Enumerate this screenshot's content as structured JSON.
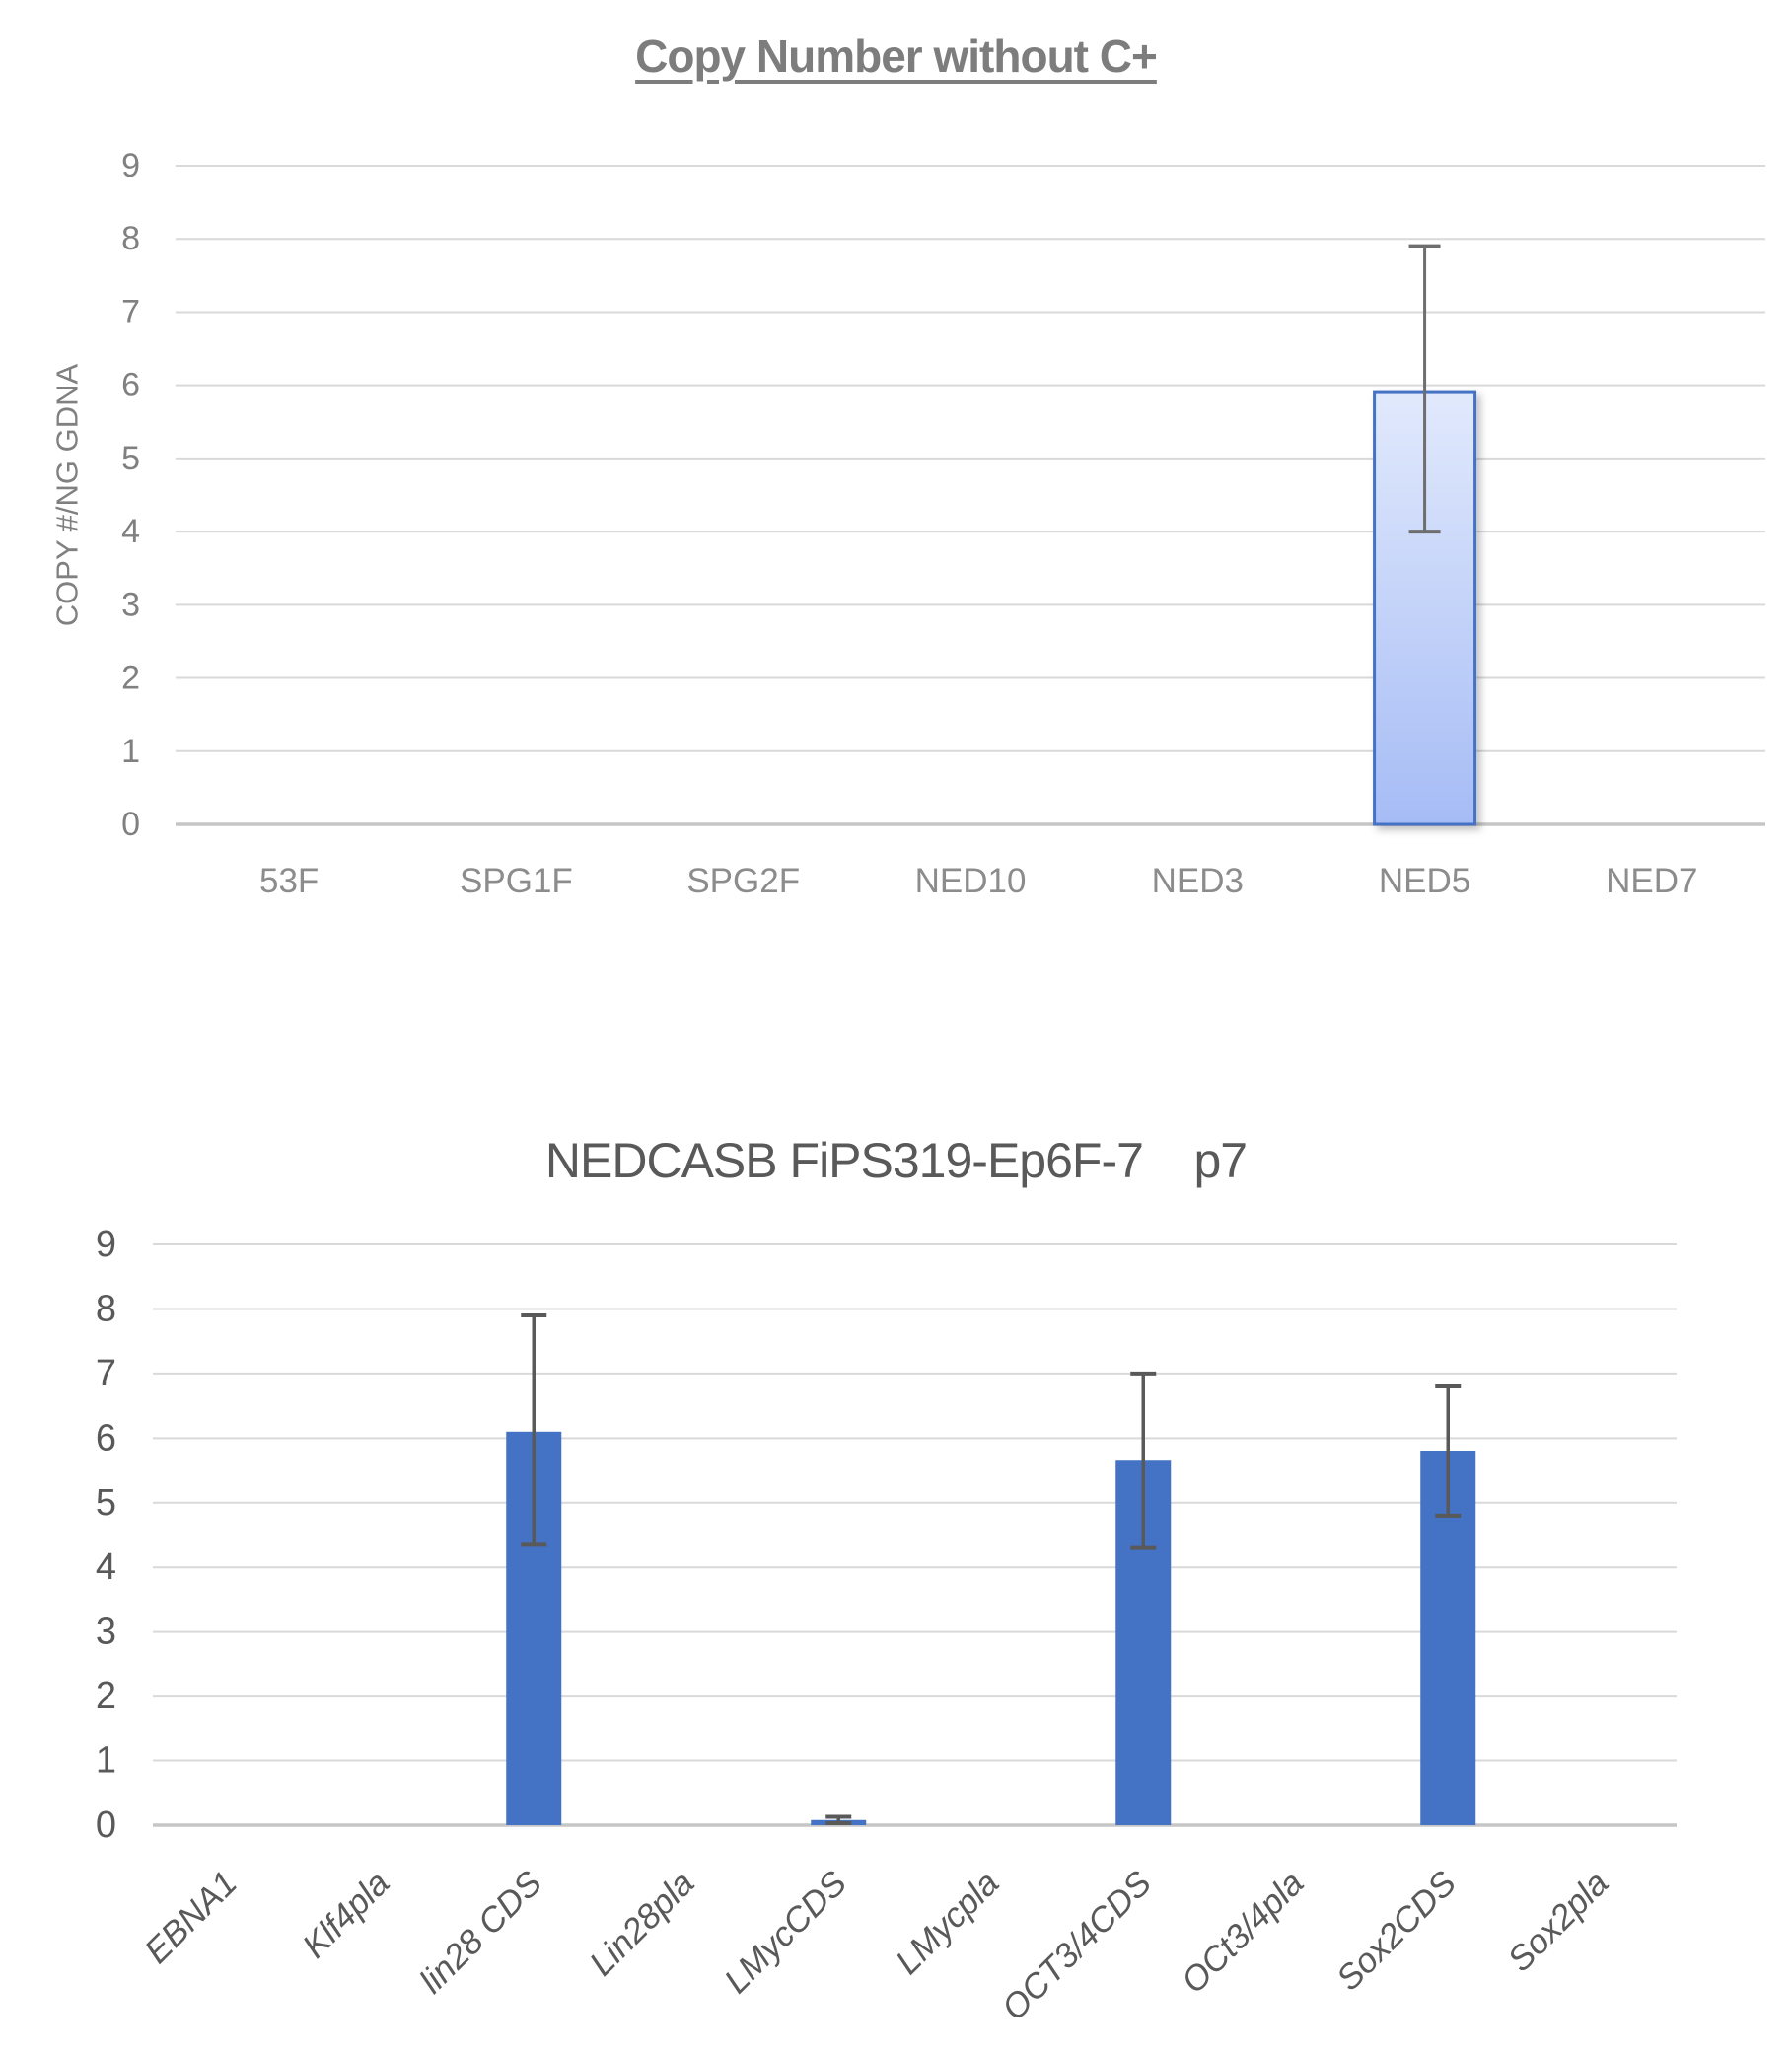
{
  "page": {
    "background": "#ffffff"
  },
  "chart_data": [
    {
      "type": "bar",
      "title": "Copy Number without C+",
      "title_style": {
        "bold": true,
        "underline": true,
        "color": "#7d7d7d"
      },
      "xlabel": "",
      "ylabel": "COPY #/NG GDNA",
      "ylim": [
        0,
        9
      ],
      "yticks": [
        0,
        1,
        2,
        3,
        4,
        5,
        6,
        7,
        8,
        9
      ],
      "grid": true,
      "legend": false,
      "categories": [
        "53F",
        "SPG1F",
        "SPG2F",
        "NED10",
        "NED3",
        "NED5",
        "NED7"
      ],
      "values": [
        0,
        0,
        0,
        0,
        0,
        5.9,
        0
      ],
      "error_bars": [
        null,
        null,
        null,
        null,
        null,
        {
          "low": 4.0,
          "high": 7.9
        },
        null
      ],
      "bar_style": {
        "fill_gradient_top": "#e1e9fc",
        "fill_gradient_bottom": "#a6bcf5",
        "border": "#4472c4"
      },
      "colors": {
        "gridline": "#d9d9d9",
        "axis_line": "#c6c6c6",
        "tick_text": "#808080",
        "category_text": "#8c8c8c",
        "axis_title_text": "#808080",
        "error_bar": "#6e6e6e"
      }
    },
    {
      "type": "bar",
      "title": "NEDCASB FiPS319-Ep6F-7    p7",
      "title_style": {
        "bold": false,
        "underline": false,
        "color": "#595959"
      },
      "xlabel": "",
      "ylabel": "",
      "ylim": [
        0,
        9
      ],
      "yticks": [
        0,
        1,
        2,
        3,
        4,
        5,
        6,
        7,
        8,
        9
      ],
      "grid": true,
      "legend": false,
      "categories": [
        "EBNA1",
        "Klf4pla",
        "lin28 CDS",
        "Lin28pla",
        "LMycCDS",
        "LMycpla",
        "OCT3/4CDS",
        "OCt3/4pla",
        "Sox2CDS",
        "Sox2pla"
      ],
      "values": [
        0,
        0,
        6.1,
        0,
        0.08,
        0,
        5.65,
        0,
        5.8,
        0
      ],
      "error_bars": [
        null,
        null,
        {
          "low": 4.35,
          "high": 7.9
        },
        null,
        {
          "low": 0.03,
          "high": 0.13
        },
        null,
        {
          "low": 4.3,
          "high": 7.0
        },
        null,
        {
          "low": 4.8,
          "high": 6.8
        },
        null
      ],
      "bar_style": {
        "fill": "#4472c4"
      },
      "category_label_style": {
        "italic": true,
        "rotation_deg": 45
      },
      "colors": {
        "gridline": "#d9d9d9",
        "axis_line": "#c6c6c6",
        "tick_text": "#595959",
        "category_text": "#595959",
        "error_bar": "#595959"
      }
    }
  ]
}
